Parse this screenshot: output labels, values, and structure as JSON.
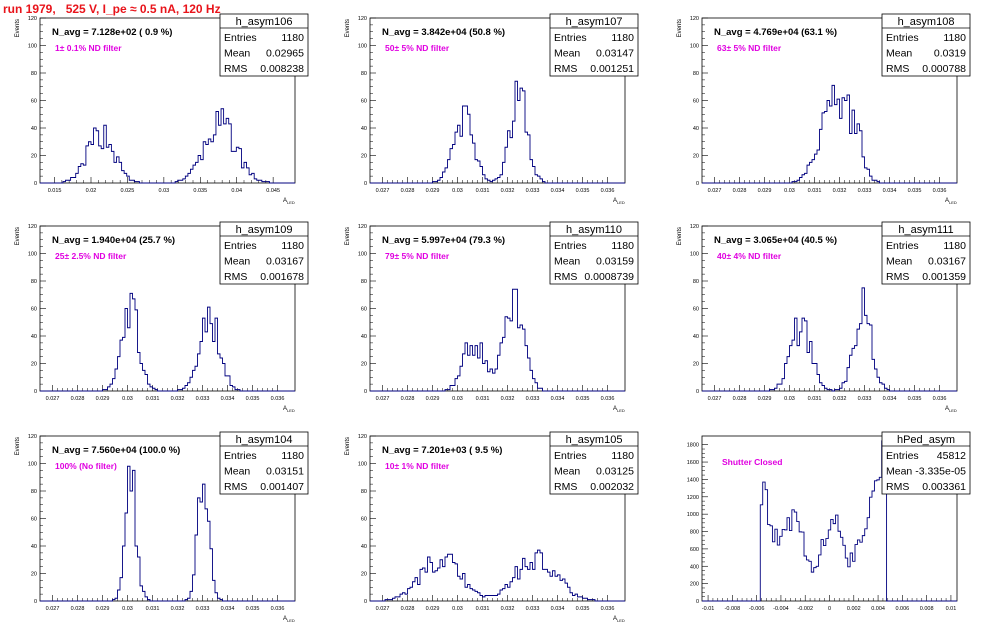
{
  "run_title": "run 1979,   525 V, I_pe ≈ 0.5 nA, 120 Hz",
  "stat_labels": {
    "entries": "Entries",
    "mean": "Mean",
    "rms": "RMS"
  },
  "colors": {
    "histogram": "#00007f",
    "annotation": "#e000e0",
    "run_title": "#e8141b",
    "frame": "#000000"
  },
  "chart_data": [
    {
      "type": "histogram",
      "name": "h_asym106",
      "navg": "N_avg = 7.128e+02 ( 0.9 %)",
      "filter": "1± 0.1% ND filter",
      "entries": "1180",
      "mean": "0.02965",
      "rms": "0.008238",
      "xlabel": "A_LED",
      "ylabel": "Events",
      "xlim": [
        0.013,
        0.048
      ],
      "ylim": [
        0,
        120
      ],
      "xticks": [
        0.015,
        0.02,
        0.025,
        0.03,
        0.035,
        0.04,
        0.045
      ],
      "xticklabels": [
        "0.015",
        "0.02",
        "0.025",
        "0.03",
        "0.035",
        "0.04",
        "0.045"
      ],
      "yticks": [
        0,
        20,
        40,
        60,
        80,
        100,
        120
      ],
      "peaks": [
        {
          "mu": 0.0212,
          "sigma": 0.0018,
          "height": 36
        },
        {
          "mu": 0.0376,
          "sigma": 0.0022,
          "height": 42
        }
      ],
      "bin": 0.00035
    },
    {
      "type": "histogram",
      "name": "h_asym107",
      "navg": "N_avg = 3.842e+04 (50.8 %)",
      "filter": "50± 5% ND filter",
      "entries": "1180",
      "mean": "0.03147",
      "rms": "0.001251",
      "xlabel": "A_LED",
      "ylabel": "Events",
      "xlim": [
        0.0265,
        0.0367
      ],
      "ylim": [
        0,
        120
      ],
      "xticks": [
        0.027,
        0.028,
        0.029,
        0.03,
        0.031,
        0.032,
        0.033,
        0.034,
        0.035,
        0.036
      ],
      "xticklabels": [
        "0.027",
        "0.028",
        "0.029",
        "0.03",
        "0.031",
        "0.032",
        "0.033",
        "0.034",
        "0.035",
        "0.036"
      ],
      "yticks": [
        0,
        20,
        40,
        60,
        80,
        100,
        120
      ],
      "peaks": [
        {
          "mu": 0.0302,
          "sigma": 0.0004,
          "height": 46
        },
        {
          "mu": 0.0324,
          "sigma": 0.00035,
          "height": 64
        }
      ],
      "bin": 0.0001
    },
    {
      "type": "histogram",
      "name": "h_asym108",
      "navg": "N_avg = 4.769e+04 (63.1 %)",
      "filter": "63± 5% ND filter",
      "entries": "1180",
      "mean": "0.0319",
      "rms": "0.000788",
      "xlabel": "A_LED",
      "ylabel": "Events",
      "xlim": [
        0.0265,
        0.0367
      ],
      "ylim": [
        0,
        120
      ],
      "xticks": [
        0.027,
        0.028,
        0.029,
        0.03,
        0.031,
        0.032,
        0.033,
        0.034,
        0.035,
        0.036
      ],
      "xticklabels": [
        "0.027",
        "0.028",
        "0.029",
        "0.03",
        "0.031",
        "0.032",
        "0.033",
        "0.034",
        "0.035",
        "0.036"
      ],
      "yticks": [
        0,
        20,
        40,
        60,
        80,
        100,
        120
      ],
      "peaks": [
        {
          "mu": 0.0316,
          "sigma": 0.0005,
          "height": 54
        },
        {
          "mu": 0.0325,
          "sigma": 0.00035,
          "height": 38
        }
      ],
      "bin": 0.0001
    },
    {
      "type": "histogram",
      "name": "h_asym109",
      "navg": "N_avg = 1.940e+04 (25.7 %)",
      "filter": "25± 2.5% ND filter",
      "entries": "1180",
      "mean": "0.03167",
      "rms": "0.001678",
      "xlabel": "A_LED",
      "ylabel": "Events",
      "xlim": [
        0.0265,
        0.0367
      ],
      "ylim": [
        0,
        120
      ],
      "xticks": [
        0.027,
        0.028,
        0.029,
        0.03,
        0.031,
        0.032,
        0.033,
        0.034,
        0.035,
        0.036
      ],
      "xticklabels": [
        "0.027",
        "0.028",
        "0.029",
        "0.03",
        "0.031",
        "0.032",
        "0.033",
        "0.034",
        "0.035",
        "0.036"
      ],
      "yticks": [
        0,
        20,
        40,
        60,
        80,
        100,
        120
      ],
      "peaks": [
        {
          "mu": 0.03005,
          "sigma": 0.00035,
          "height": 60
        },
        {
          "mu": 0.03325,
          "sigma": 0.0004,
          "height": 54
        }
      ],
      "bin": 0.0001
    },
    {
      "type": "histogram",
      "name": "h_asym110",
      "navg": "N_avg = 5.997e+04 (79.3 %)",
      "filter": "79± 5% ND filter",
      "entries": "1180",
      "mean": "0.03159",
      "rms": "0.0008739",
      "xlabel": "A_LED",
      "ylabel": "Events",
      "xlim": [
        0.0265,
        0.0367
      ],
      "ylim": [
        0,
        120
      ],
      "xticks": [
        0.027,
        0.028,
        0.029,
        0.03,
        0.031,
        0.032,
        0.033,
        0.034,
        0.035,
        0.036
      ],
      "xticklabels": [
        "0.027",
        "0.028",
        "0.029",
        "0.03",
        "0.031",
        "0.032",
        "0.033",
        "0.034",
        "0.035",
        "0.036"
      ],
      "yticks": [
        0,
        20,
        40,
        60,
        80,
        100,
        120
      ],
      "peaks": [
        {
          "mu": 0.0306,
          "sigma": 0.0004,
          "height": 36
        },
        {
          "mu": 0.0322,
          "sigma": 0.0004,
          "height": 62
        }
      ],
      "bin": 0.0001
    },
    {
      "type": "histogram",
      "name": "h_asym111",
      "navg": "N_avg = 3.065e+04 (40.5 %)",
      "filter": "40± 4% ND filter",
      "entries": "1180",
      "mean": "0.03167",
      "rms": "0.001359",
      "xlabel": "A_LED",
      "ylabel": "Events",
      "xlim": [
        0.0265,
        0.0367
      ],
      "ylim": [
        0,
        120
      ],
      "xticks": [
        0.027,
        0.028,
        0.029,
        0.03,
        0.031,
        0.032,
        0.033,
        0.034,
        0.035,
        0.036
      ],
      "xticklabels": [
        "0.027",
        "0.028",
        "0.029",
        "0.03",
        "0.031",
        "0.032",
        "0.033",
        "0.034",
        "0.035",
        "0.036"
      ],
      "yticks": [
        0,
        20,
        40,
        60,
        80,
        100,
        120
      ],
      "peaks": [
        {
          "mu": 0.0304,
          "sigma": 0.0004,
          "height": 48
        },
        {
          "mu": 0.0329,
          "sigma": 0.00035,
          "height": 60
        }
      ],
      "bin": 0.0001
    },
    {
      "type": "histogram",
      "name": "h_asym104",
      "navg": "N_avg = 7.560e+04 (100.0 %)",
      "filter": "100% (No filter)",
      "entries": "1180",
      "mean": "0.03151",
      "rms": "0.001407",
      "xlabel": "A_LED",
      "ylabel": "Events",
      "xlim": [
        0.0265,
        0.0367
      ],
      "ylim": [
        0,
        120
      ],
      "xticks": [
        0.027,
        0.028,
        0.029,
        0.03,
        0.031,
        0.032,
        0.033,
        0.034,
        0.035,
        0.036
      ],
      "xticklabels": [
        "0.027",
        "0.028",
        "0.029",
        "0.03",
        "0.031",
        "0.032",
        "0.033",
        "0.034",
        "0.035",
        "0.036"
      ],
      "yticks": [
        0,
        20,
        40,
        60,
        80,
        100,
        120
      ],
      "peaks": [
        {
          "mu": 0.0301,
          "sigma": 0.00022,
          "height": 84
        },
        {
          "mu": 0.033,
          "sigma": 0.00022,
          "height": 102
        }
      ],
      "bin": 0.0001
    },
    {
      "type": "histogram",
      "name": "h_asym105",
      "navg": "N_avg = 7.201e+03 ( 9.5 %)",
      "filter": "10± 1% ND filter",
      "entries": "1180",
      "mean": "0.03125",
      "rms": "0.002032",
      "xlabel": "A_LED",
      "ylabel": "Events",
      "xlim": [
        0.0265,
        0.0367
      ],
      "ylim": [
        0,
        120
      ],
      "xticks": [
        0.027,
        0.028,
        0.029,
        0.03,
        0.031,
        0.032,
        0.033,
        0.034,
        0.035,
        0.036
      ],
      "xticklabels": [
        "0.027",
        "0.028",
        "0.029",
        "0.03",
        "0.031",
        "0.032",
        "0.033",
        "0.034",
        "0.035",
        "0.036"
      ],
      "yticks": [
        0,
        20,
        40,
        60,
        80,
        100,
        120
      ],
      "peaks": [
        {
          "mu": 0.0293,
          "sigma": 0.0008,
          "height": 30
        },
        {
          "mu": 0.0331,
          "sigma": 0.0008,
          "height": 32
        }
      ],
      "bin": 0.0001
    },
    {
      "type": "histogram",
      "name": "hPed_asym",
      "navg": "",
      "filter": "Shutter Closed",
      "entries": "45812",
      "mean": "-3.335e-05",
      "rms": "0.003361",
      "xlabel": "",
      "ylabel": "",
      "xlim": [
        -0.0105,
        0.0105
      ],
      "ylim": [
        0,
        1900
      ],
      "xticks": [
        -0.01,
        -0.008,
        -0.006,
        -0.004,
        -0.002,
        0,
        0.002,
        0.004,
        0.006,
        0.008,
        0.01
      ],
      "xticklabels": [
        "-0.01",
        "-0.008",
        "-0.006",
        "-0.004",
        "-0.002",
        "0",
        "0.002",
        "0.004",
        "0.006",
        "0.008",
        "0.01"
      ],
      "yticks": [
        0,
        200,
        400,
        600,
        800,
        1000,
        1200,
        1400,
        1600,
        1800
      ],
      "pedestal_support": [
        -0.0058,
        0.0046
      ],
      "bin": 0.0002
    }
  ]
}
